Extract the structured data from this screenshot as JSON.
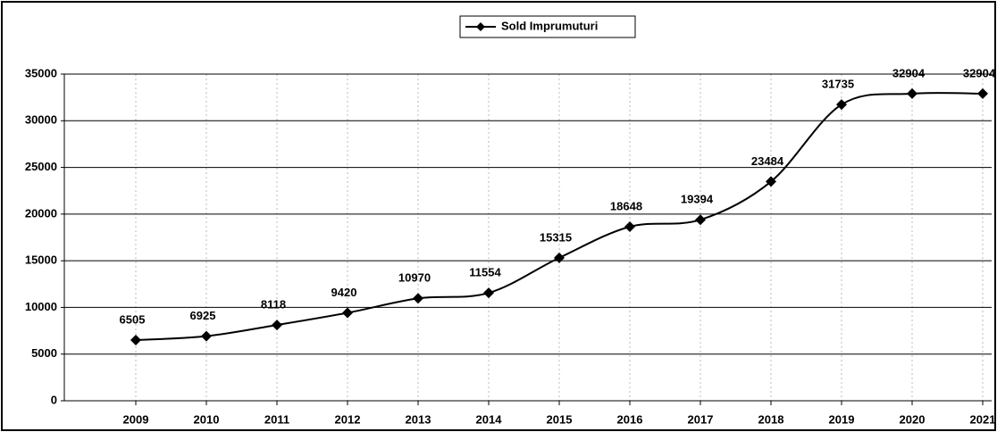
{
  "chart_data": {
    "type": "line",
    "categories": [
      "2009",
      "2010",
      "2011",
      "2012",
      "2013",
      "2014",
      "2015",
      "2016",
      "2017",
      "2018",
      "2019",
      "2020",
      "2021"
    ],
    "series": [
      {
        "name": "Sold Imprumuturi",
        "color": "#000000",
        "values": [
          6505,
          6925,
          8118,
          9420,
          10970,
          11554,
          15315,
          18648,
          19394,
          23484,
          31735,
          32904,
          32904
        ]
      }
    ],
    "ylim": [
      0,
      35000
    ],
    "yticks": [
      0,
      5000,
      10000,
      15000,
      20000,
      25000,
      30000,
      35000
    ],
    "grid": true,
    "legend": "top",
    "smooth": true
  }
}
